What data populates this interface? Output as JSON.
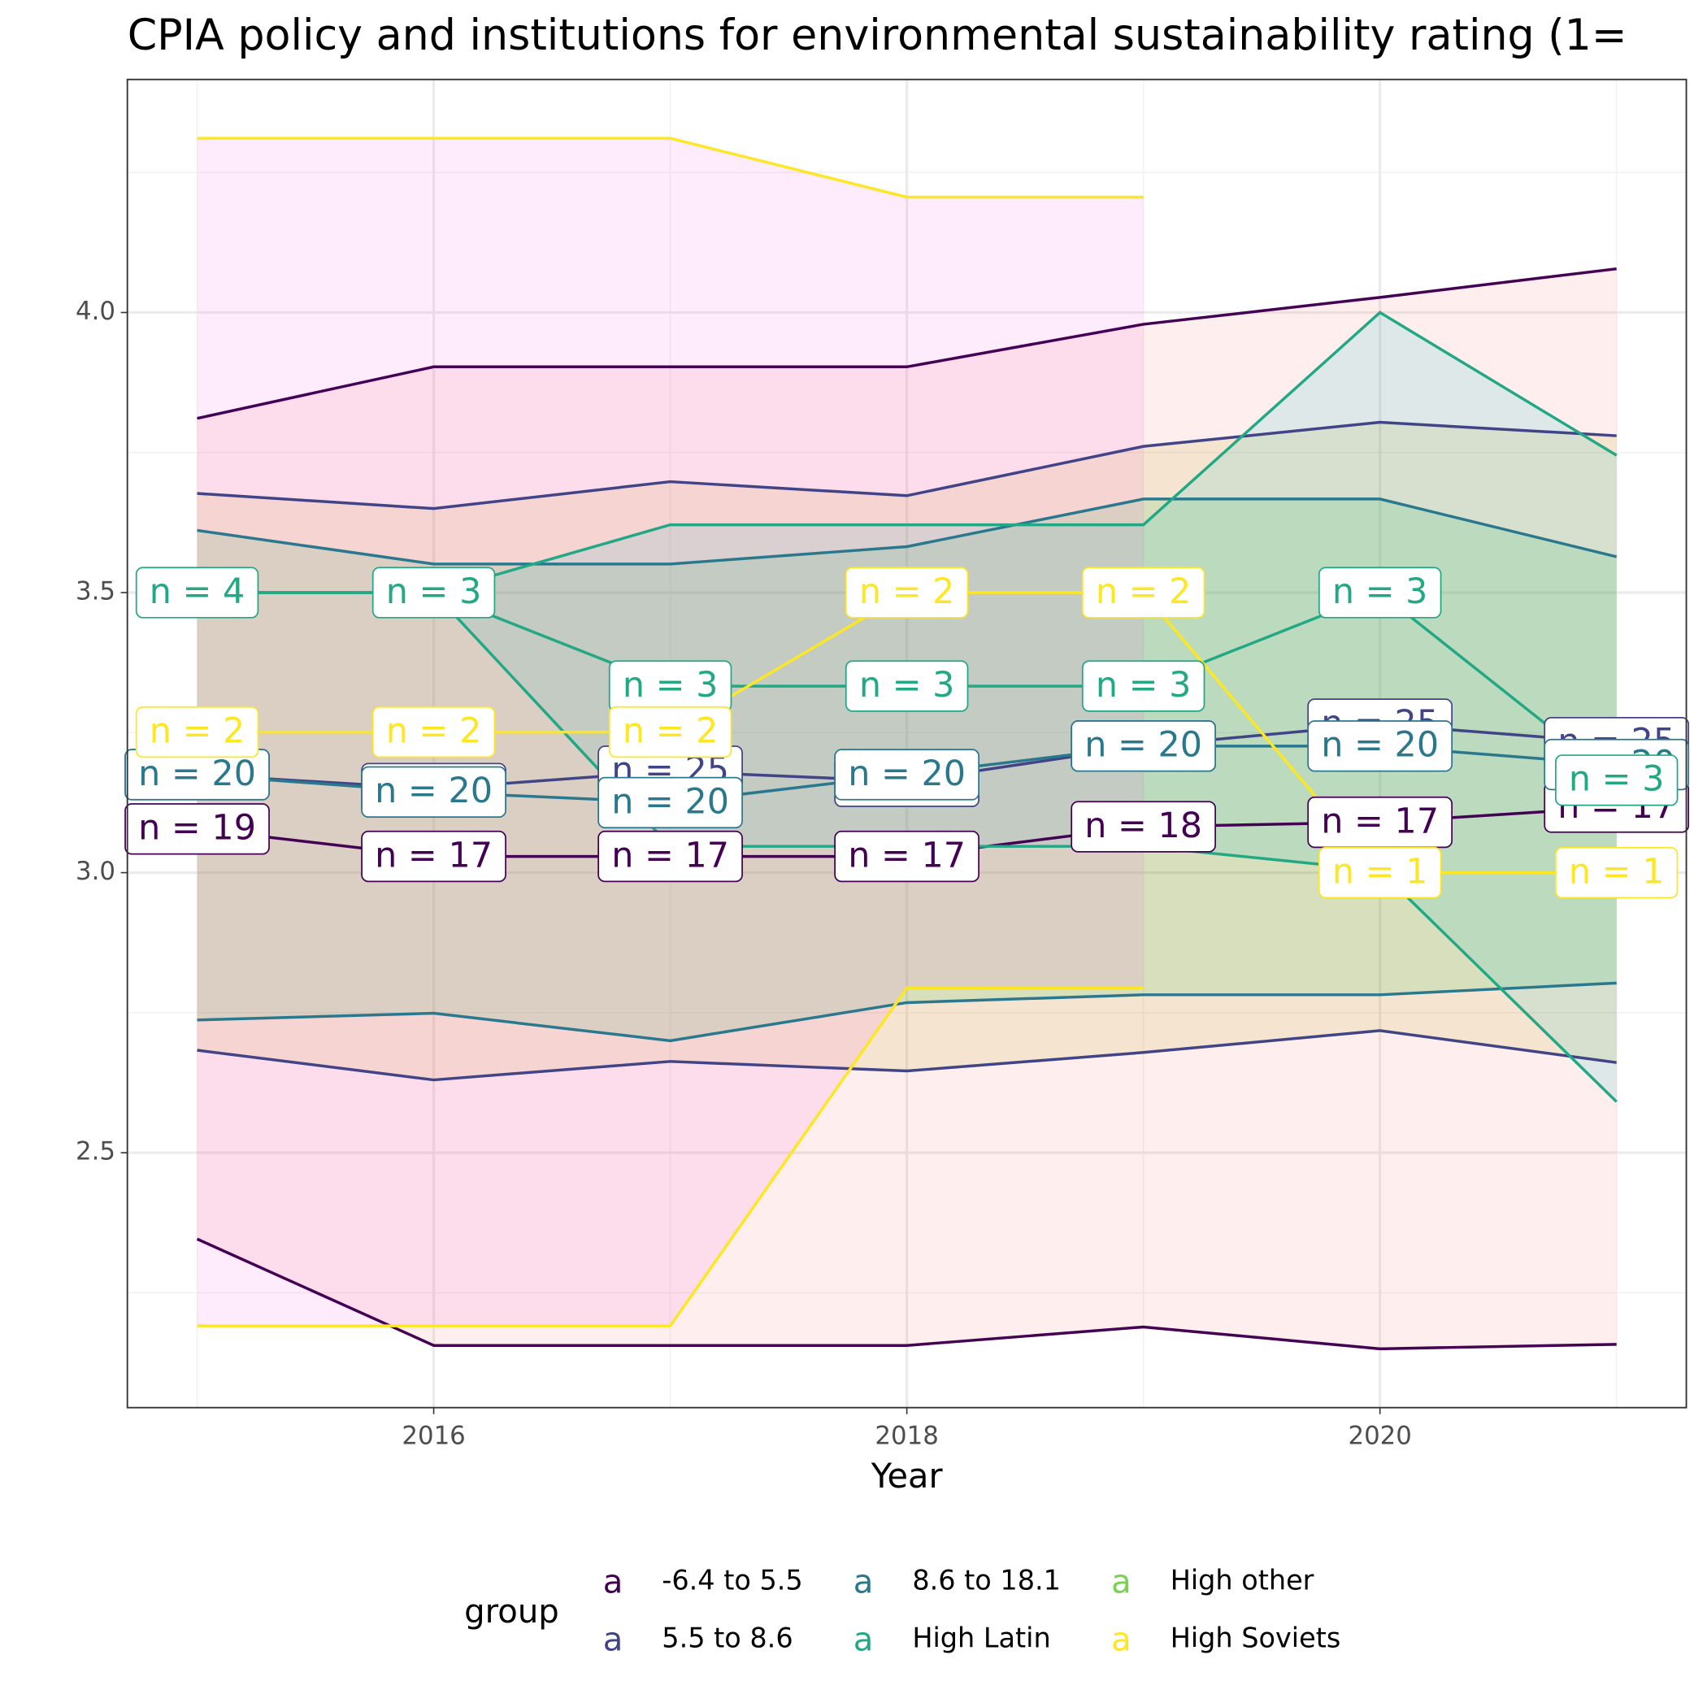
{
  "chart_data": {
    "type": "line",
    "title": "CPIA policy and institutions for environmental sustainability rating (1=",
    "x_label": "Year",
    "legend_title": "group",
    "legend_glyph": "a",
    "x": [
      2015,
      2016,
      2017,
      2018,
      2019,
      2020,
      2021
    ],
    "xlim": [
      2014.705,
      2021.295
    ],
    "xticks": [
      2016,
      2018,
      2020
    ],
    "ylim": [
      2.045,
      4.416
    ],
    "yticks": [
      {
        "value": 2.5,
        "label": "2.5"
      },
      {
        "value": 3.0,
        "label": "3.0"
      },
      {
        "value": 3.5,
        "label": "3.5"
      },
      {
        "value": 4.0,
        "label": "4.0"
      }
    ],
    "grid": true,
    "legend_position": "bottom",
    "series": [
      {
        "name": "-6.4 to 5.5",
        "color": "#440154",
        "fill": "#F8766D",
        "values": [
          3.078,
          3.029,
          3.029,
          3.029,
          3.082,
          3.09,
          3.117
        ],
        "max": [
          3.811,
          3.903,
          3.903,
          3.903,
          3.979,
          4.027,
          4.078
        ],
        "min": [
          2.346,
          2.156,
          2.156,
          2.156,
          2.189,
          2.15,
          2.158
        ],
        "n_labels": [
          "n = 19",
          "n = 17",
          "n = 17",
          "n = 17",
          "n = 18",
          "n = 17",
          "n = 17"
        ]
      },
      {
        "name": "5.5 to 8.6",
        "color": "#414487",
        "fill": "#B79F00",
        "values": [
          3.175,
          3.15,
          3.181,
          3.163,
          3.226,
          3.265,
          3.232
        ],
        "max": [
          3.677,
          3.65,
          3.698,
          3.673,
          3.761,
          3.804,
          3.78
        ],
        "min": [
          2.683,
          2.63,
          2.663,
          2.646,
          2.679,
          2.718,
          2.661
        ],
        "n_labels": [
          "n = 25",
          "n = 25",
          "n = 25",
          "n = 25",
          "n = 25",
          "n = 25",
          "n = 25"
        ]
      },
      {
        "name": "8.6 to 18.1",
        "color": "#2A788E",
        "fill": "#00BA38",
        "values": [
          3.175,
          3.144,
          3.125,
          3.175,
          3.226,
          3.226,
          3.193
        ],
        "max": [
          3.611,
          3.551,
          3.551,
          3.582,
          3.667,
          3.667,
          3.564
        ],
        "min": [
          2.737,
          2.749,
          2.7,
          2.768,
          2.782,
          2.782,
          2.803
        ],
        "n_labels": [
          "n = 20",
          "n = 20",
          "n = 20",
          "n = 20",
          "n = 20",
          "n = 20",
          "n = 20"
        ]
      },
      {
        "name": "High Latin",
        "color": "#22A884",
        "fill": "#00BFC4",
        "values": [
          3.5,
          3.5,
          3.333,
          3.333,
          3.333,
          3.5,
          3.165
        ],
        "max": [
          3.5,
          3.5,
          3.621,
          3.621,
          3.621,
          4.0,
          3.745
        ],
        "min": [
          3.5,
          3.5,
          3.047,
          3.047,
          3.047,
          3.004,
          2.591
        ],
        "n_labels": [
          "n = 4",
          "n = 3",
          "n = 3",
          "n = 3",
          "n = 3",
          "n = 3",
          "n = 3"
        ]
      },
      {
        "name": "High other",
        "color": "#7AD151",
        "fill": "#619CFF",
        "values": [
          null,
          null,
          null,
          null,
          null,
          null,
          null
        ],
        "max": [
          null,
          null,
          null,
          null,
          null,
          null,
          null
        ],
        "min": [
          null,
          null,
          null,
          null,
          null,
          null,
          null
        ],
        "n_labels": [
          null,
          null,
          null,
          null,
          null,
          null,
          null
        ]
      },
      {
        "name": "High Soviets",
        "color": "#FDE725",
        "fill": "#F564E3",
        "values": [
          3.251,
          3.251,
          3.251,
          3.5,
          3.5,
          3.0,
          3.0
        ],
        "max": [
          4.311,
          4.311,
          4.311,
          4.206,
          4.206,
          null,
          null
        ],
        "min": [
          2.191,
          2.191,
          2.191,
          2.794,
          2.794,
          null,
          null
        ],
        "n_labels": [
          "n = 2",
          "n = 2",
          "n = 2",
          "n = 2",
          "n = 2",
          "n = 1",
          "n = 1"
        ]
      }
    ]
  }
}
